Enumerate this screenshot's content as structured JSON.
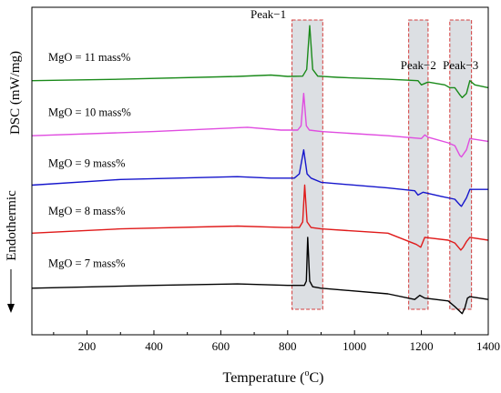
{
  "chart_data": {
    "type": "line",
    "xlabel": "Temperature (°C)",
    "xlabel_main": "Temperature (",
    "xlabel_unit": "o",
    "xlabel_end": "C)",
    "ylabel": "DSC (mW/mg)",
    "y_side_label": "Endothermic",
    "xlim": [
      35,
      1400
    ],
    "xticks": [
      200,
      400,
      600,
      800,
      1000,
      1200,
      1400
    ],
    "yticks_shown": false,
    "grid": false,
    "legend": "none",
    "peak_regions": [
      {
        "label": "Peak−1",
        "x_range": [
          813,
          905
        ]
      },
      {
        "label": "Peak−2",
        "x_range": [
          1162,
          1220
        ]
      },
      {
        "label": "Peak−3",
        "x_range": [
          1285,
          1350
        ]
      }
    ],
    "series": [
      {
        "label": "MgO = 11 mass%",
        "color": "#1a8a1a",
        "baseline": 0.78,
        "x": [
          35,
          300,
          650,
          750,
          800,
          845,
          857,
          866,
          875,
          890,
          950,
          1100,
          1190,
          1200,
          1220,
          1270,
          1285,
          1300,
          1315,
          1322,
          1335,
          1345,
          1360,
          1400
        ],
        "y": [
          0.79,
          0.795,
          0.805,
          0.81,
          0.805,
          0.806,
          0.83,
          0.985,
          0.83,
          0.806,
          0.802,
          0.795,
          0.79,
          0.775,
          0.785,
          0.775,
          0.765,
          0.765,
          0.74,
          0.73,
          0.745,
          0.79,
          0.775,
          0.765
        ]
      },
      {
        "label": "MgO = 10 mass%",
        "color": "#e04ce0",
        "baseline": 0.6,
        "x": [
          35,
          400,
          680,
          780,
          830,
          840,
          848,
          856,
          865,
          900,
          1100,
          1200,
          1210,
          1220,
          1280,
          1300,
          1315,
          1320,
          1335,
          1345,
          1400
        ],
        "y": [
          0.595,
          0.61,
          0.625,
          0.615,
          0.615,
          0.63,
          0.745,
          0.63,
          0.615,
          0.61,
          0.595,
          0.585,
          0.598,
          0.59,
          0.57,
          0.56,
          0.525,
          0.52,
          0.545,
          0.585,
          0.575
        ]
      },
      {
        "label": "MgO = 9 mass%",
        "color": "#1515cc",
        "baseline": 0.43,
        "x": [
          35,
          300,
          650,
          750,
          820,
          835,
          848,
          858,
          870,
          900,
          1100,
          1180,
          1190,
          1205,
          1260,
          1300,
          1315,
          1320,
          1335,
          1345,
          1400
        ],
        "y": [
          0.42,
          0.44,
          0.45,
          0.445,
          0.445,
          0.46,
          0.545,
          0.46,
          0.445,
          0.43,
          0.41,
          0.4,
          0.385,
          0.395,
          0.38,
          0.37,
          0.35,
          0.345,
          0.375,
          0.405,
          0.405
        ]
      },
      {
        "label": "MgO = 8 mass%",
        "color": "#e01a1a",
        "baseline": 0.25,
        "x": [
          35,
          300,
          650,
          790,
          835,
          845,
          851,
          858,
          870,
          900,
          1100,
          1185,
          1198,
          1210,
          1280,
          1300,
          1318,
          1325,
          1335,
          1345,
          1400
        ],
        "y": [
          0.25,
          0.265,
          0.275,
          0.27,
          0.27,
          0.29,
          0.42,
          0.29,
          0.27,
          0.265,
          0.25,
          0.21,
          0.2,
          0.235,
          0.225,
          0.215,
          0.19,
          0.2,
          0.22,
          0.235,
          0.225
        ]
      },
      {
        "label": "MgO = 7 mass%",
        "color": "#000000",
        "baseline": 0.05,
        "x": [
          35,
          400,
          650,
          800,
          850,
          856,
          860,
          866,
          875,
          900,
          1100,
          1180,
          1195,
          1210,
          1280,
          1300,
          1322,
          1330,
          1338,
          1345,
          1400
        ],
        "y": [
          0.055,
          0.065,
          0.07,
          0.065,
          0.065,
          0.08,
          0.235,
          0.08,
          0.06,
          0.055,
          0.035,
          0.015,
          0.03,
          0.02,
          0.01,
          -0.01,
          -0.035,
          -0.015,
          0.02,
          0.025,
          0.015
        ]
      }
    ]
  }
}
